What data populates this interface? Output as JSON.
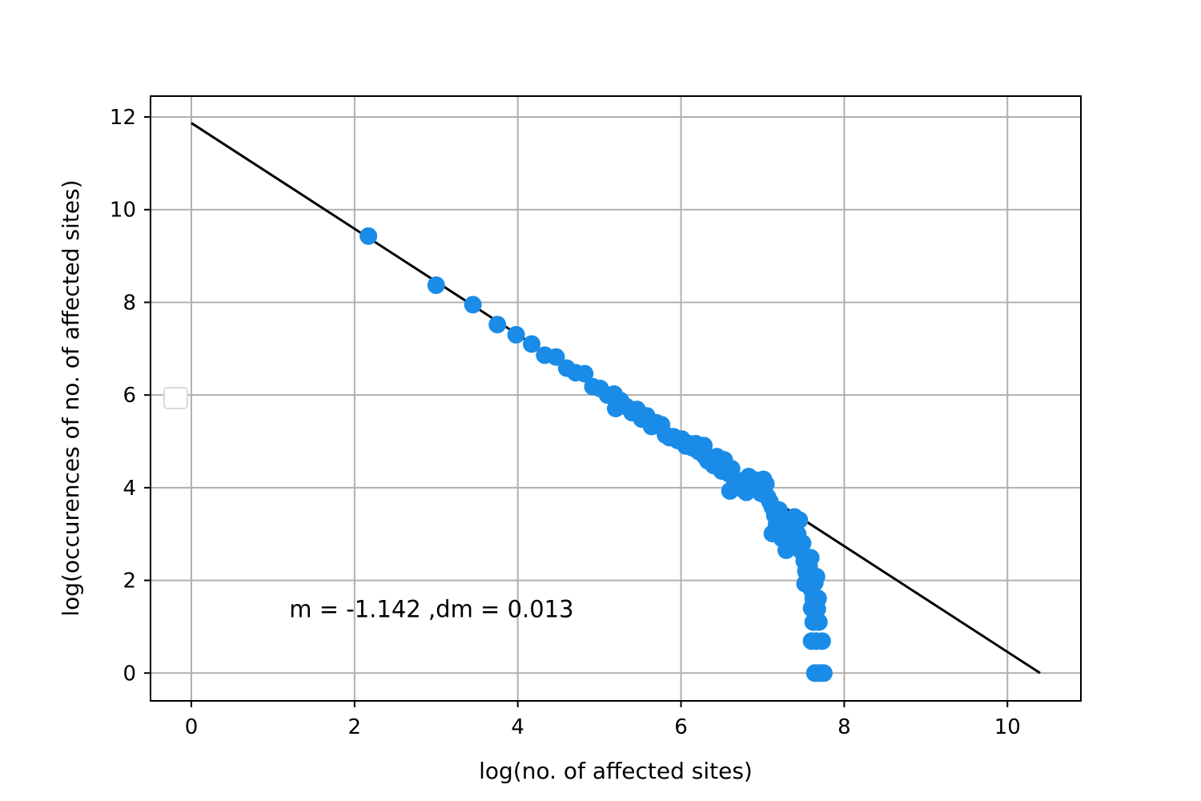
{
  "chart_data": {
    "type": "scatter",
    "title": "",
    "xlabel": "log(no. of affected sites)",
    "ylabel": "log(occurences of no. of affected sites)",
    "xlim": [
      -0.5,
      10.9
    ],
    "ylim": [
      -0.6,
      12.45
    ],
    "grid": true,
    "x_ticks": [
      0,
      2,
      4,
      6,
      8,
      10
    ],
    "y_ticks": [
      0,
      2,
      4,
      6,
      8,
      10,
      12
    ],
    "x_tick_labels": [
      "0",
      "2",
      "4",
      "6",
      "8",
      "10"
    ],
    "y_tick_labels": [
      "0",
      "2",
      "4",
      "6",
      "8",
      "10",
      "12"
    ],
    "legend": {
      "position": "center-left",
      "entries": []
    },
    "annotation": {
      "text": "m = -1.142 ,dm = 0.013",
      "x": 1.2,
      "y": 1.38
    },
    "series": [
      {
        "type": "scatter",
        "color": "#1a8ce8",
        "points": [
          [
            2.17,
            9.43
          ],
          [
            3.0,
            8.37
          ],
          [
            3.45,
            7.95
          ],
          [
            3.75,
            7.52
          ],
          [
            3.98,
            7.3
          ],
          [
            4.17,
            7.1
          ],
          [
            4.33,
            6.86
          ],
          [
            4.47,
            6.82
          ],
          [
            4.6,
            6.58
          ],
          [
            4.71,
            6.48
          ],
          [
            4.82,
            6.46
          ],
          [
            4.92,
            6.18
          ],
          [
            5.01,
            6.14
          ],
          [
            5.1,
            6.0
          ],
          [
            5.18,
            6.02
          ],
          [
            5.26,
            5.88
          ],
          [
            5.2,
            5.71
          ],
          [
            5.33,
            5.75
          ],
          [
            5.4,
            5.62
          ],
          [
            5.46,
            5.69
          ],
          [
            5.52,
            5.48
          ],
          [
            5.58,
            5.55
          ],
          [
            5.64,
            5.32
          ],
          [
            5.7,
            5.4
          ],
          [
            5.76,
            5.36
          ],
          [
            5.81,
            5.14
          ],
          [
            5.86,
            5.08
          ],
          [
            5.91,
            5.1
          ],
          [
            5.96,
            5.02
          ],
          [
            6.01,
            5.05
          ],
          [
            6.06,
            4.9
          ],
          [
            6.1,
            4.95
          ],
          [
            6.14,
            4.86
          ],
          [
            6.18,
            4.95
          ],
          [
            6.22,
            4.78
          ],
          [
            6.26,
            4.75
          ],
          [
            6.29,
            4.68
          ],
          [
            6.28,
            4.91
          ],
          [
            6.33,
            4.58
          ],
          [
            6.37,
            4.55
          ],
          [
            6.4,
            4.48
          ],
          [
            6.44,
            4.67
          ],
          [
            6.47,
            4.52
          ],
          [
            6.5,
            4.36
          ],
          [
            6.53,
            4.6
          ],
          [
            6.56,
            4.46
          ],
          [
            6.59,
            4.3
          ],
          [
            6.62,
            4.41
          ],
          [
            6.6,
            3.93
          ],
          [
            6.65,
            4.2
          ],
          [
            6.68,
            4.12
          ],
          [
            6.71,
            4.14
          ],
          [
            6.74,
            4.08
          ],
          [
            6.77,
            3.95
          ],
          [
            6.8,
            3.9
          ],
          [
            6.83,
            4.24
          ],
          [
            6.86,
            4.1
          ],
          [
            6.89,
            4.0
          ],
          [
            6.92,
            4.16
          ],
          [
            6.95,
            4.02
          ],
          [
            6.98,
            3.88
          ],
          [
            7.01,
            4.18
          ],
          [
            7.04,
            4.08
          ],
          [
            7.06,
            3.8
          ],
          [
            7.09,
            3.7
          ],
          [
            7.12,
            3.58
          ],
          [
            7.15,
            3.4
          ],
          [
            7.17,
            3.2
          ],
          [
            7.12,
            3.01
          ],
          [
            7.2,
            3.52
          ],
          [
            7.22,
            3.1
          ],
          [
            7.24,
            2.9
          ],
          [
            7.27,
            3.3
          ],
          [
            7.29,
            2.65
          ],
          [
            7.32,
            3.08
          ],
          [
            7.34,
            2.8
          ],
          [
            7.36,
            3.2
          ],
          [
            7.39,
            3.37
          ],
          [
            7.41,
            2.73
          ],
          [
            7.43,
            3.0
          ],
          [
            7.45,
            3.3
          ],
          [
            7.47,
            2.64
          ],
          [
            7.49,
            2.8
          ],
          [
            7.51,
            2.42
          ],
          [
            7.53,
            2.2
          ],
          [
            7.55,
            2.1
          ],
          [
            7.57,
            2.3
          ],
          [
            7.59,
            2.49
          ],
          [
            7.52,
            1.93
          ],
          [
            7.6,
            1.8
          ],
          [
            7.62,
            1.61
          ],
          [
            7.64,
            1.95
          ],
          [
            7.66,
            2.08
          ],
          [
            7.68,
            1.61
          ],
          [
            7.6,
            1.4
          ],
          [
            7.62,
            1.1
          ],
          [
            7.67,
            1.38
          ],
          [
            7.69,
            1.1
          ],
          [
            7.6,
            0.69
          ],
          [
            7.66,
            0.69
          ],
          [
            7.73,
            0.69
          ],
          [
            7.64,
            0.0
          ],
          [
            7.69,
            0.0
          ],
          [
            7.72,
            0.0
          ],
          [
            7.75,
            0.0
          ]
        ]
      },
      {
        "type": "line",
        "color": "#000000",
        "points": [
          [
            0.0,
            11.87
          ],
          [
            10.4,
            0.0
          ]
        ]
      }
    ]
  }
}
